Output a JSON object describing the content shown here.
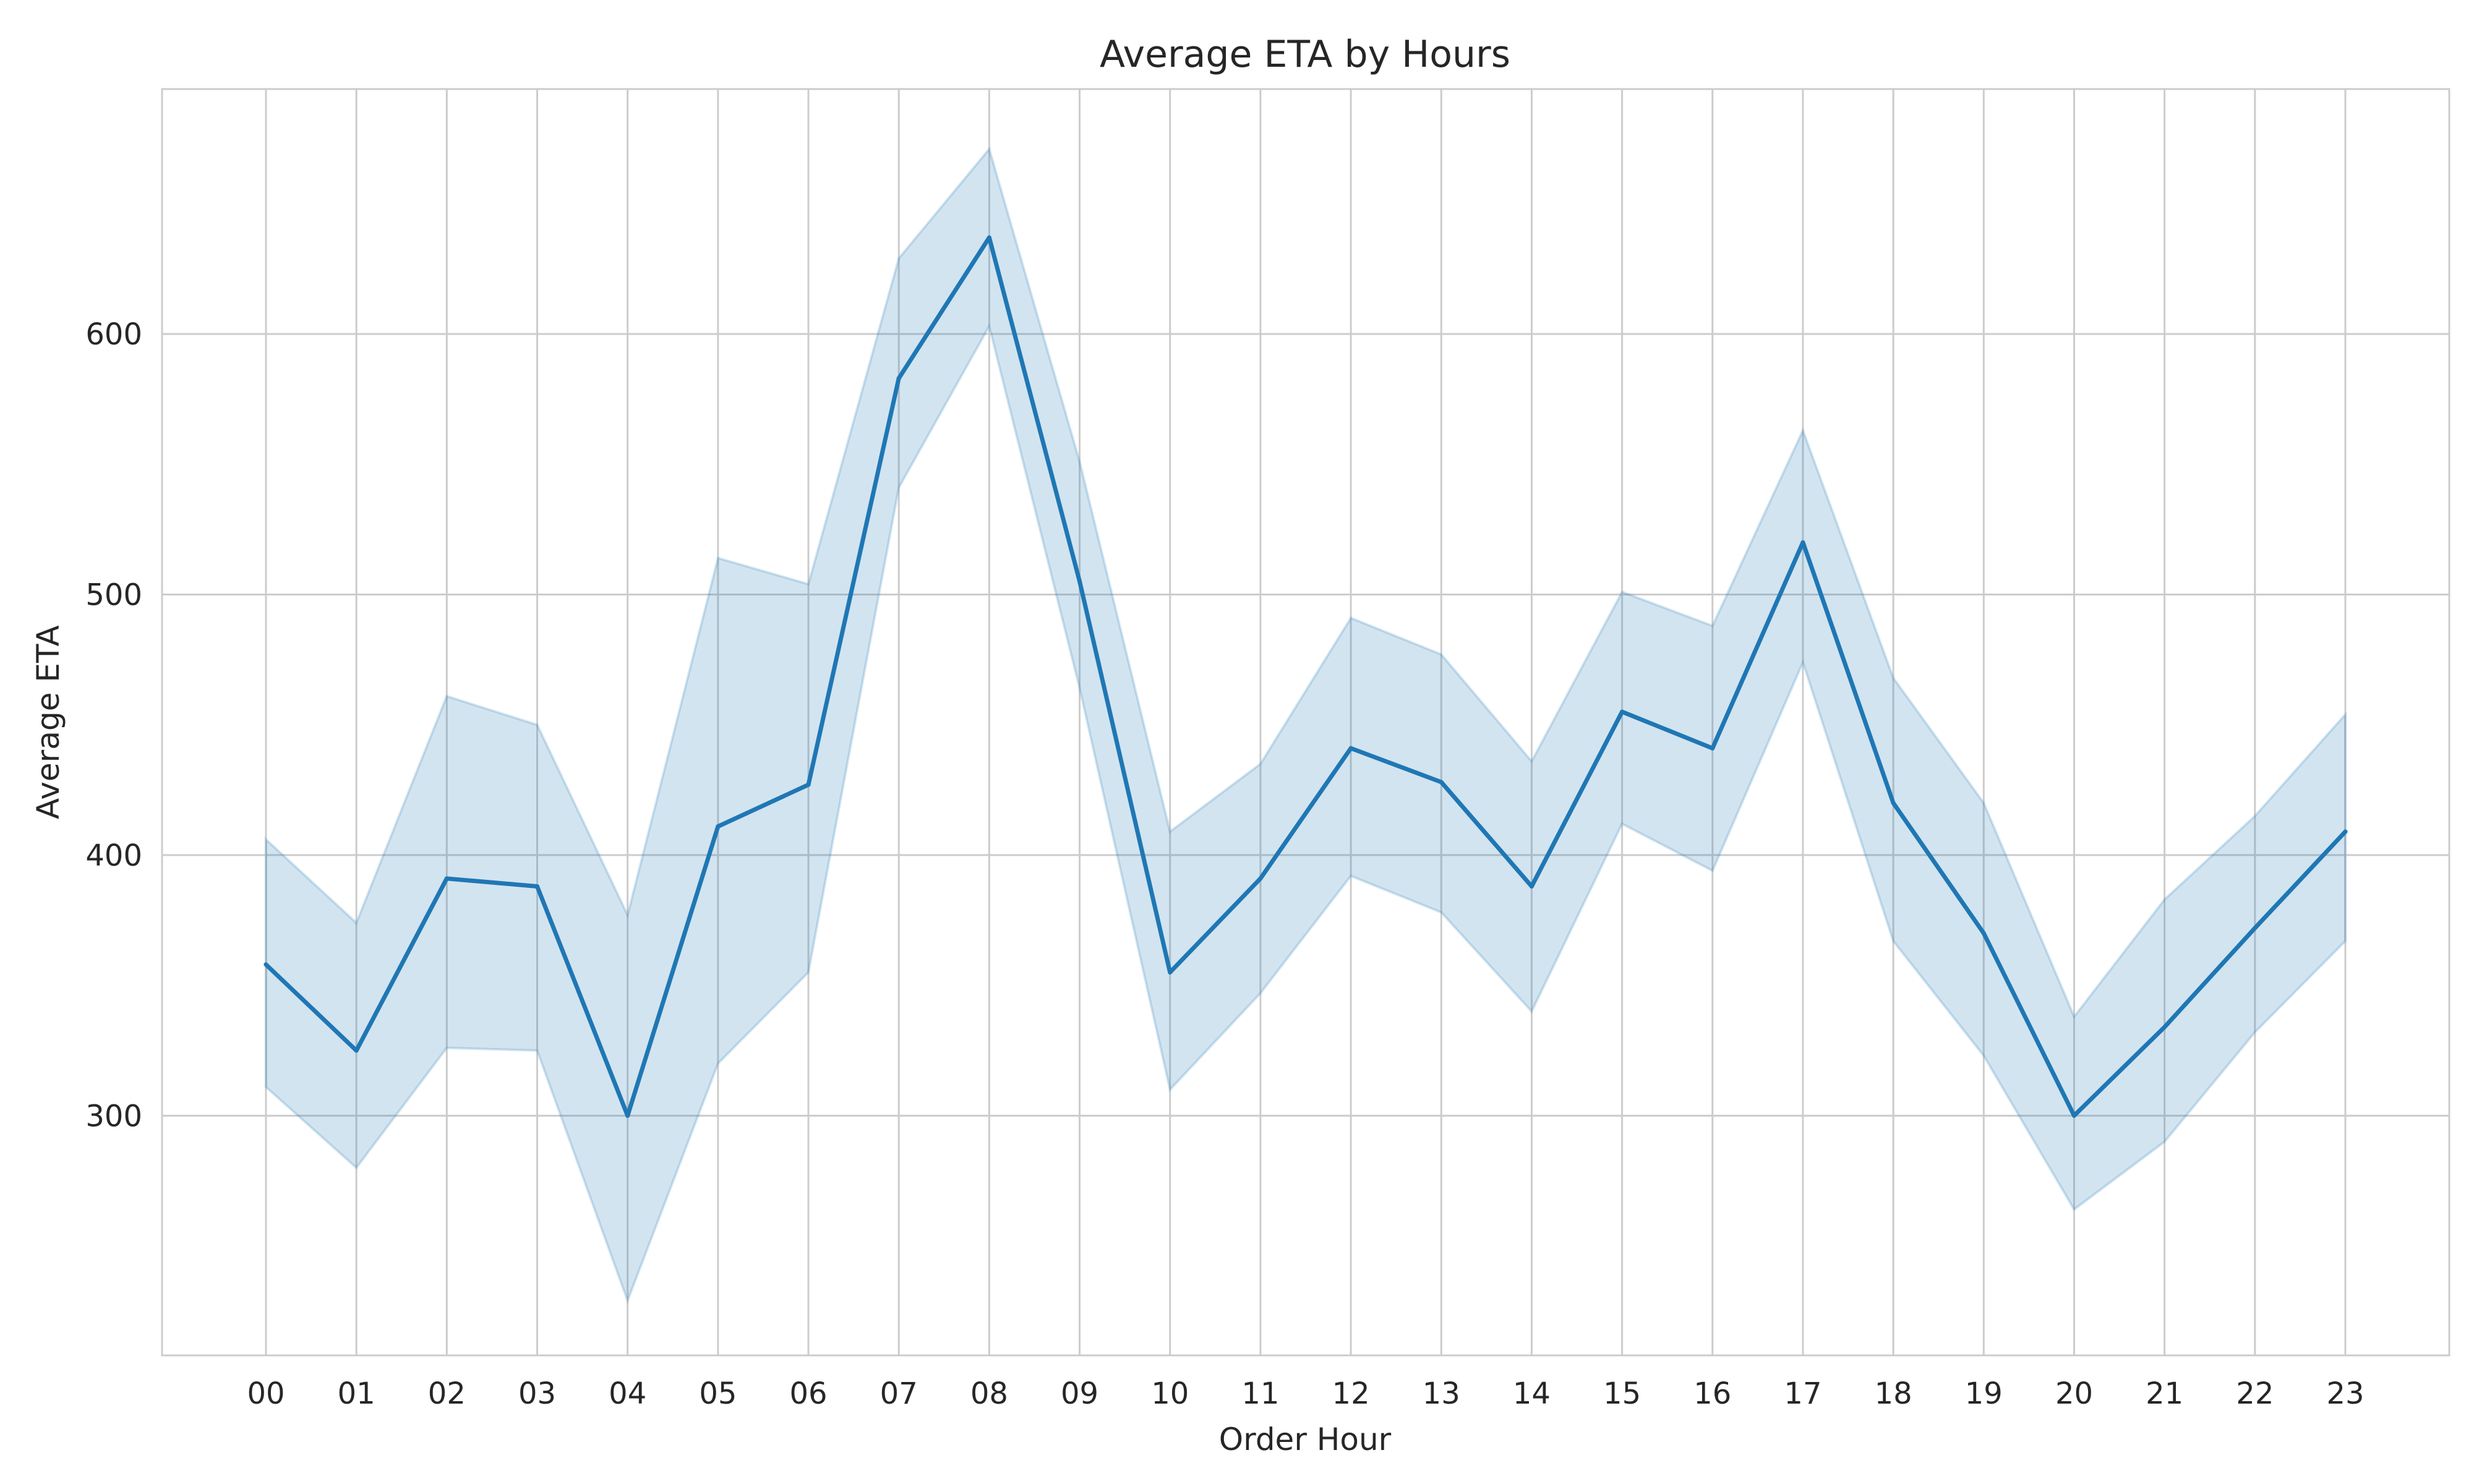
{
  "chart_data": {
    "type": "line",
    "title": "Average ETA by Hours",
    "xlabel": "Order Hour",
    "ylabel": "Average ETA",
    "categories": [
      "00",
      "01",
      "02",
      "03",
      "04",
      "05",
      "06",
      "07",
      "08",
      "09",
      "10",
      "11",
      "12",
      "13",
      "14",
      "15",
      "16",
      "17",
      "18",
      "19",
      "20",
      "21",
      "22",
      "23"
    ],
    "series": [
      {
        "values": [
          358,
          325,
          391,
          388,
          300,
          411,
          427,
          583,
          637,
          505,
          355,
          391,
          441,
          428,
          388,
          455,
          441,
          520,
          420,
          370,
          300,
          334,
          372,
          409
        ],
        "ci_upper": [
          406,
          374,
          461,
          450,
          377,
          514,
          504,
          629,
          671,
          551,
          409,
          435,
          491,
          477,
          436,
          501,
          488,
          563,
          468,
          420,
          338,
          383,
          415,
          454
        ],
        "ci_lower": [
          311,
          280,
          326,
          325,
          229,
          320,
          355,
          541,
          603,
          464,
          310,
          347,
          392,
          378,
          340,
          412,
          394,
          474,
          367,
          323,
          264,
          290,
          332,
          367
        ],
        "color": "#1f77b4"
      }
    ],
    "ylim": [
      208,
      694
    ],
    "yticks": [
      300,
      400,
      500,
      600
    ],
    "grid": true,
    "band_color": "#1f77b4"
  }
}
